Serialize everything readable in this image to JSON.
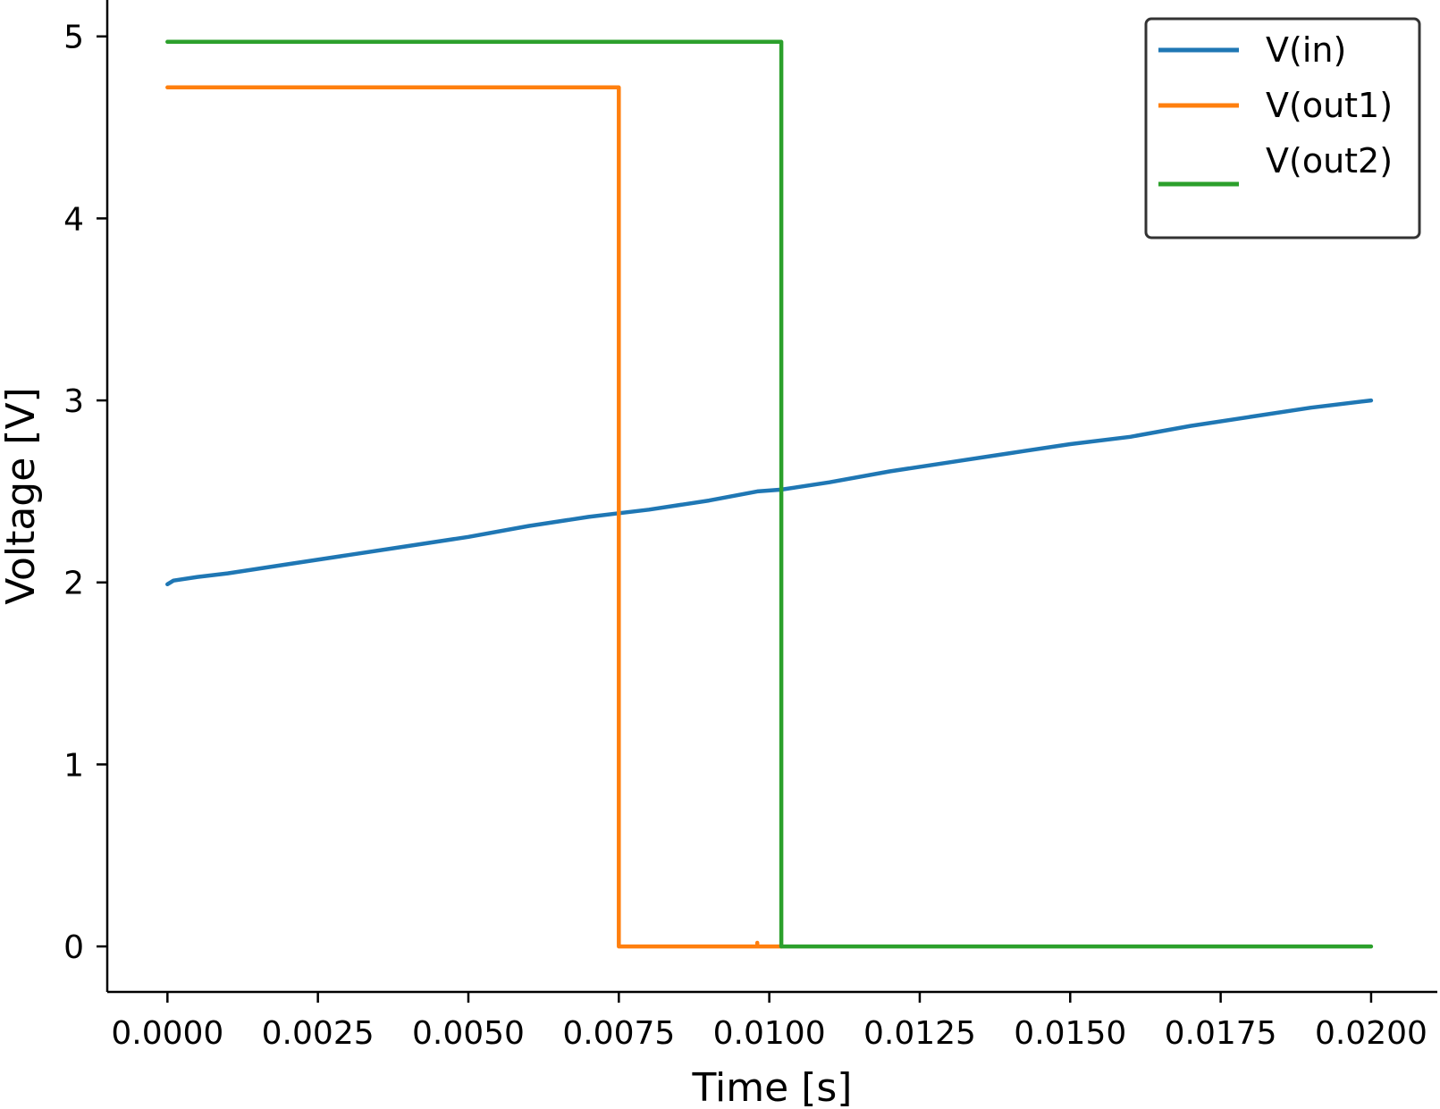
{
  "chart_data": {
    "type": "line",
    "xlabel": "Time [s]",
    "ylabel": "Voltage [V]",
    "xlim": [
      -0.001,
      0.0211
    ],
    "ylim": [
      -0.25,
      5.2
    ],
    "x_ticks": [
      "0.0000",
      "0.0025",
      "0.0050",
      "0.0075",
      "0.0100",
      "0.0125",
      "0.0150",
      "0.0175",
      "0.0200"
    ],
    "x_tick_values": [
      0,
      0.0025,
      0.005,
      0.0075,
      0.01,
      0.0125,
      0.015,
      0.0175,
      0.02
    ],
    "y_ticks": [
      "0",
      "1",
      "2",
      "3",
      "4",
      "5"
    ],
    "y_tick_values": [
      0,
      1,
      2,
      3,
      4,
      5
    ],
    "grid": false,
    "legend_position": "top-right",
    "series": [
      {
        "name": "V(in)",
        "color": "#1f77b4",
        "x": [
          0,
          0.0001,
          0.0005,
          0.001,
          0.002,
          0.003,
          0.004,
          0.005,
          0.006,
          0.007,
          0.0075,
          0.008,
          0.009,
          0.0098,
          0.0102,
          0.011,
          0.012,
          0.013,
          0.014,
          0.015,
          0.016,
          0.017,
          0.018,
          0.019,
          0.02
        ],
        "y": [
          1.99,
          2.01,
          2.03,
          2.05,
          2.1,
          2.15,
          2.2,
          2.25,
          2.31,
          2.36,
          2.38,
          2.4,
          2.45,
          2.5,
          2.51,
          2.55,
          2.61,
          2.66,
          2.71,
          2.76,
          2.8,
          2.86,
          2.91,
          2.96,
          3.0
        ]
      },
      {
        "name": "V(out1)",
        "color": "#ff7f0e",
        "x": [
          0,
          0.0075,
          0.0075,
          0.0098,
          0.0098,
          0.0098,
          0.0102
        ],
        "y": [
          4.72,
          4.72,
          0,
          0,
          0.02,
          0,
          0
        ]
      },
      {
        "name": "V(out2)",
        "color": "#2ca02c",
        "x": [
          0,
          0.0102,
          0.0102,
          0.02
        ],
        "y": [
          4.97,
          4.97,
          0,
          0
        ]
      }
    ]
  }
}
